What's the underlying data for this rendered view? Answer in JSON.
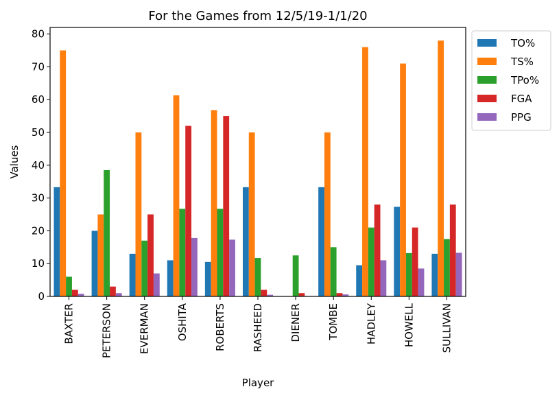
{
  "chart_data": {
    "type": "bar",
    "title": "For the Games from 12/5/19-1/1/20",
    "xlabel": "Player",
    "ylabel": "Values",
    "ylim": [
      0,
      82
    ],
    "yticks": [
      0,
      10,
      20,
      30,
      40,
      50,
      60,
      70,
      80
    ],
    "grid": false,
    "legend_position": "outside-top-right",
    "categories": [
      "BAXTER",
      "PETERSON",
      "EVERMAN",
      "OSHITA",
      "ROBERTS",
      "RASHEED",
      "DIENER",
      "TOMBE",
      "HADLEY",
      "HOWELL",
      "SULLIVAN"
    ],
    "series": [
      {
        "name": "TO%",
        "color": "#1f77b4",
        "values": [
          33.3,
          20.0,
          13.0,
          11.0,
          10.5,
          33.3,
          0.0,
          33.3,
          9.5,
          27.3,
          13.0
        ]
      },
      {
        "name": "TS%",
        "color": "#ff7f0e",
        "values": [
          75.0,
          25.0,
          50.0,
          61.3,
          56.8,
          50.0,
          0.0,
          50.0,
          76.0,
          71.0,
          78.0
        ]
      },
      {
        "name": "TPo%",
        "color": "#2ca02c",
        "values": [
          6.0,
          38.5,
          17.0,
          26.7,
          26.7,
          11.7,
          12.5,
          15.0,
          21.0,
          13.2,
          17.5
        ]
      },
      {
        "name": "FGA",
        "color": "#d62728",
        "values": [
          2.0,
          3.0,
          25.0,
          52.0,
          55.0,
          2.0,
          1.0,
          1.0,
          28.0,
          21.0,
          28.0
        ]
      },
      {
        "name": "PPG",
        "color": "#9467bd",
        "values": [
          0.8,
          1.0,
          7.0,
          17.8,
          17.3,
          0.5,
          0.0,
          0.6,
          11.0,
          8.5,
          13.3
        ]
      }
    ]
  }
}
